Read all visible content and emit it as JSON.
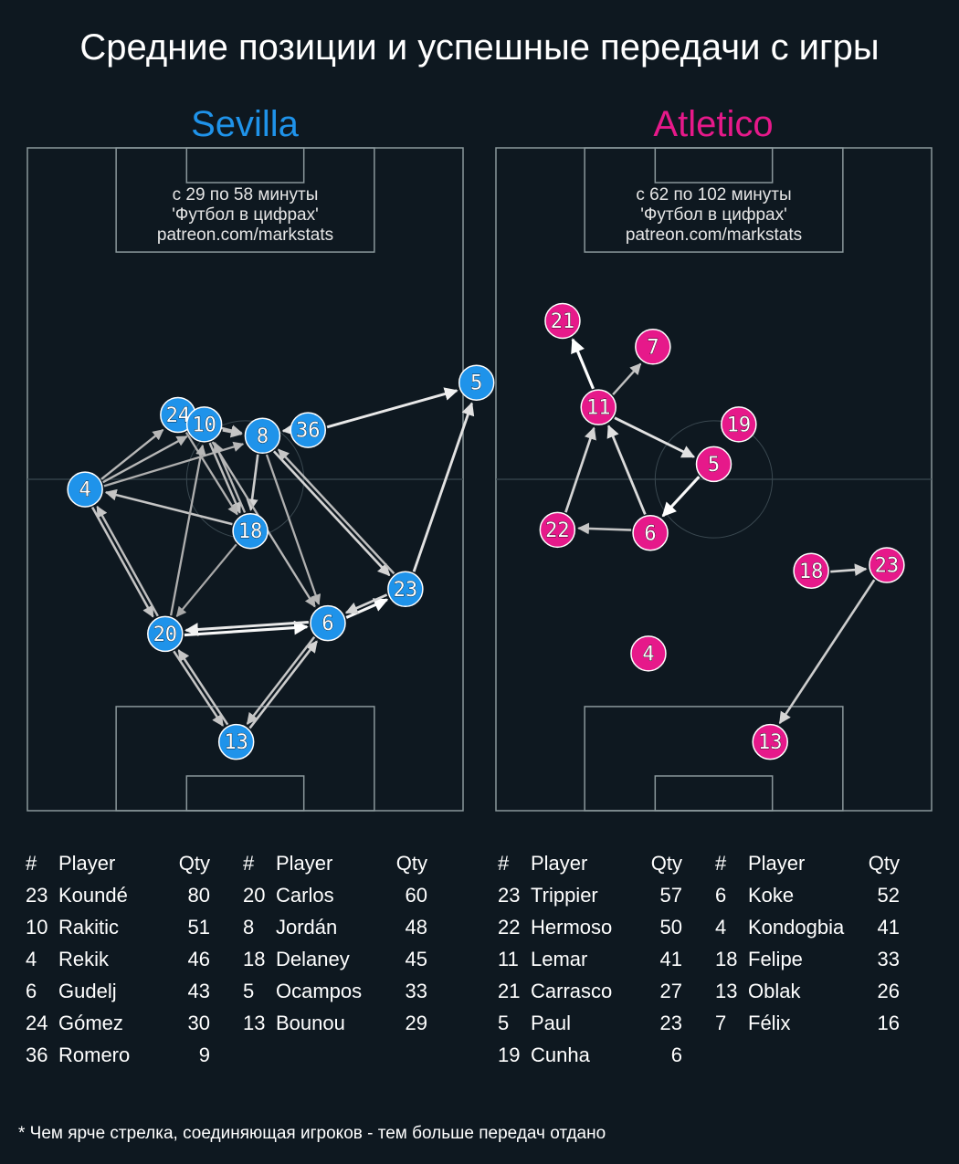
{
  "title": "Средние позиции и успешные передачи с игры",
  "footnote": "* Чем ярче стрелка, соединяющая игроков - тем больше передач отдано",
  "table_headers": {
    "num": "#",
    "player": "Player",
    "qty": "Qty"
  },
  "colors": {
    "background": "#0e1820",
    "sevilla": "#1f93ea",
    "atletico": "#e6198a",
    "pitch_lines": "#8a979b"
  },
  "chart_data": [
    {
      "type": "pass_network",
      "team": "Sevilla",
      "info": [
        "с 29 по 58 минуты",
        "'Футбол в цифрах'",
        "patreon.com/markstats"
      ],
      "players": [
        {
          "num": "5",
          "x": 36.1,
          "y": 15.3
        },
        {
          "num": "24",
          "x": -10.5,
          "y": 10.2
        },
        {
          "num": "10",
          "x": -6.4,
          "y": 8.7
        },
        {
          "num": "36",
          "x": 9.8,
          "y": 7.8
        },
        {
          "num": "8",
          "x": 2.7,
          "y": 6.9
        },
        {
          "num": "4",
          "x": -25.0,
          "y": -1.6
        },
        {
          "num": "18",
          "x": 0.8,
          "y": -8.2
        },
        {
          "num": "23",
          "x": 25.0,
          "y": -17.4
        },
        {
          "num": "6",
          "x": 12.9,
          "y": -22.8
        },
        {
          "num": "20",
          "x": -12.5,
          "y": -24.5
        },
        {
          "num": "13",
          "x": -1.4,
          "y": -41.6
        }
      ],
      "passes": [
        {
          "from": "36",
          "to": "5",
          "strength": 0.85
        },
        {
          "from": "23",
          "to": "5",
          "strength": 0.8
        },
        {
          "from": "36",
          "to": "8",
          "strength": 0.75
        },
        {
          "from": "10",
          "to": "8",
          "strength": 0.6
        },
        {
          "from": "24",
          "to": "8",
          "strength": 0.55
        },
        {
          "from": "4",
          "to": "24",
          "strength": 0.5
        },
        {
          "from": "4",
          "to": "10",
          "strength": 0.5
        },
        {
          "from": "4",
          "to": "8",
          "strength": 0.45
        },
        {
          "from": "18",
          "to": "4",
          "strength": 0.6
        },
        {
          "from": "10",
          "to": "18",
          "strength": 0.55
        },
        {
          "from": "24",
          "to": "18",
          "strength": 0.45
        },
        {
          "from": "18",
          "to": "10",
          "strength": 0.5
        },
        {
          "from": "8",
          "to": "18",
          "strength": 0.65
        },
        {
          "from": "8",
          "to": "23",
          "strength": 0.7
        },
        {
          "from": "23",
          "to": "8",
          "strength": 0.55
        },
        {
          "from": "8",
          "to": "6",
          "strength": 0.45
        },
        {
          "from": "10",
          "to": "6",
          "strength": 0.5
        },
        {
          "from": "18",
          "to": "20",
          "strength": 0.4
        },
        {
          "from": "20",
          "to": "10",
          "strength": 0.45
        },
        {
          "from": "4",
          "to": "20",
          "strength": 0.6
        },
        {
          "from": "20",
          "to": "4",
          "strength": 0.55
        },
        {
          "from": "6",
          "to": "23",
          "strength": 0.95
        },
        {
          "from": "23",
          "to": "6",
          "strength": 0.7
        },
        {
          "from": "20",
          "to": "6",
          "strength": 0.95
        },
        {
          "from": "6",
          "to": "20",
          "strength": 0.85
        },
        {
          "from": "13",
          "to": "20",
          "strength": 0.6
        },
        {
          "from": "20",
          "to": "13",
          "strength": 0.6
        },
        {
          "from": "13",
          "to": "6",
          "strength": 0.65
        },
        {
          "from": "6",
          "to": "13",
          "strength": 0.6
        }
      ],
      "table": [
        {
          "num": "23",
          "player": "Koundé",
          "qty": "80"
        },
        {
          "num": "10",
          "player": "Rakitic",
          "qty": "51"
        },
        {
          "num": "4",
          "player": "Rekik",
          "qty": "46"
        },
        {
          "num": "6",
          "player": "Gudelj",
          "qty": "43"
        },
        {
          "num": "24",
          "player": "Gómez",
          "qty": "30"
        },
        {
          "num": "36",
          "player": "Romero",
          "qty": "9"
        },
        {
          "num": "20",
          "player": "Carlos",
          "qty": "60"
        },
        {
          "num": "8",
          "player": "Jordán",
          "qty": "48"
        },
        {
          "num": "18",
          "player": "Delaney",
          "qty": "45"
        },
        {
          "num": "5",
          "player": "Ocampos",
          "qty": "33"
        },
        {
          "num": "13",
          "player": "Bounou",
          "qty": "29"
        }
      ]
    },
    {
      "type": "pass_network",
      "team": "Atletico",
      "info": [
        "с 62 по 102 минуты",
        "'Футбол в цифрах'",
        "patreon.com/markstats"
      ],
      "players": [
        {
          "num": "21",
          "x": -23.6,
          "y": 25.1
        },
        {
          "num": "7",
          "x": -9.5,
          "y": 21.0
        },
        {
          "num": "11",
          "x": -18.0,
          "y": 11.4
        },
        {
          "num": "19",
          "x": 3.9,
          "y": 8.7
        },
        {
          "num": "5",
          "x": 0.0,
          "y": 2.4
        },
        {
          "num": "22",
          "x": -24.4,
          "y": -8.0
        },
        {
          "num": "6",
          "x": -9.9,
          "y": -8.5
        },
        {
          "num": "18",
          "x": 15.2,
          "y": -14.5
        },
        {
          "num": "23",
          "x": 27.0,
          "y": -13.6
        },
        {
          "num": "4",
          "x": -10.2,
          "y": -27.6
        },
        {
          "num": "13",
          "x": 8.8,
          "y": -41.6
        }
      ],
      "passes": [
        {
          "from": "11",
          "to": "21",
          "strength": 1.0
        },
        {
          "from": "11",
          "to": "7",
          "strength": 0.55
        },
        {
          "from": "11",
          "to": "5",
          "strength": 0.8
        },
        {
          "from": "5",
          "to": "6",
          "strength": 0.95
        },
        {
          "from": "6",
          "to": "11",
          "strength": 0.75
        },
        {
          "from": "22",
          "to": "11",
          "strength": 0.7
        },
        {
          "from": "6",
          "to": "22",
          "strength": 0.6
        },
        {
          "from": "18",
          "to": "23",
          "strength": 0.7
        },
        {
          "from": "23",
          "to": "13",
          "strength": 0.65
        }
      ],
      "table": [
        {
          "num": "23",
          "player": "Trippier",
          "qty": "57"
        },
        {
          "num": "22",
          "player": "Hermoso",
          "qty": "50"
        },
        {
          "num": "11",
          "player": "Lemar",
          "qty": "41"
        },
        {
          "num": "21",
          "player": "Carrasco",
          "qty": "27"
        },
        {
          "num": "5",
          "player": "Paul",
          "qty": "23"
        },
        {
          "num": "19",
          "player": "Cunha",
          "qty": "6"
        },
        {
          "num": "6",
          "player": "Koke",
          "qty": "52"
        },
        {
          "num": "4",
          "player": "Kondogbia",
          "qty": "41"
        },
        {
          "num": "18",
          "player": "Felipe",
          "qty": "33"
        },
        {
          "num": "13",
          "player": "Oblak",
          "qty": "26"
        },
        {
          "num": "7",
          "player": "Félix",
          "qty": "16"
        }
      ]
    }
  ]
}
